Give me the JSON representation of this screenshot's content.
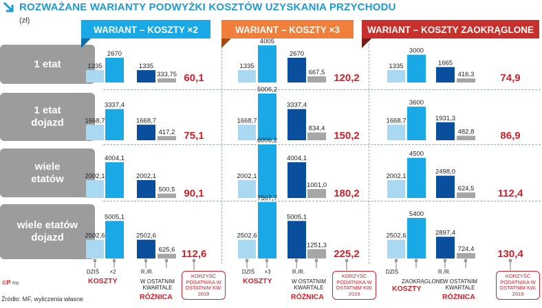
{
  "title": "ROZWAŻANE WARIANTY PODWYŻKI KOSZTÓW UZYSKANIA PRZYCHODU",
  "unit": "(zł)",
  "source": "Źródło: MF, wyliczenia własne",
  "logo": "©P",
  "logo_suffix": "RM",
  "colors": {
    "today": "#a8d8f2",
    "variant": "#18a9e6",
    "difference": "#0a4f9e",
    "quarterly": "#a6a6a6",
    "benefit": "#d0202a",
    "rowlabel_bg": "#9c9c9c"
  },
  "chart_data": {
    "type": "bar",
    "rows": [
      "1 etat",
      "1 etat dojazd",
      "wiele etatów",
      "wiele etatów dojazd"
    ],
    "variants": [
      {
        "banner": "WARIANT – KOSZTY ×2",
        "banner_color": "#18a9e6",
        "koszty": {
          "today_label": "DZIŚ",
          "variant_label": "×2",
          "group_label": "KOSZTY"
        },
        "diff": {
          "yearly_label": "R./R.",
          "quarterly_label": "W OSTATNIM KWARTALE",
          "group_label": "RÓŻNICA"
        },
        "benefit_label": "KORZYŚĆ PODATNIKA W OSTATNIM KW. 2019",
        "today": [
          "1335",
          "1668,7",
          "2002,1",
          "2502,6"
        ],
        "variant": [
          "2670",
          "3337,4",
          "4004,1",
          "5005,1"
        ],
        "yearly_diff": [
          "1335",
          "1668,7",
          "2002,1",
          "2502,6"
        ],
        "quarterly_diff": [
          "333,75",
          "417,2",
          "500,5",
          "625,6"
        ],
        "benefit": [
          "60,1",
          "75,1",
          "90,1",
          "112,6"
        ]
      },
      {
        "banner": "WARIANT – KOSZTY ×3",
        "banner_color": "#f07f3c",
        "koszty": {
          "today_label": "DZIŚ",
          "variant_label": "×3",
          "group_label": "KOSZTY"
        },
        "diff": {
          "yearly_label": "R./R.",
          "quarterly_label": "W OSTATNIM KWARTALE",
          "group_label": "RÓŻNICA"
        },
        "benefit_label": "KORZYŚĆ PODATNIKA W OSTATNIM KW. 2019",
        "today": [
          "1335",
          "1668,7",
          "2002,1",
          "2502,6"
        ],
        "variant": [
          "4005",
          "5006,2",
          "6006,2",
          "7507,7"
        ],
        "yearly_diff": [
          "2670",
          "3337,4",
          "4004,1",
          "5005,1"
        ],
        "quarterly_diff": [
          "667,5",
          "834,4",
          "1001,0",
          "1251,3"
        ],
        "benefit": [
          "120,2",
          "150,2",
          "180,2",
          "225,2"
        ]
      },
      {
        "banner": "WARIANT – KOSZTY ZAOKRĄGLONE",
        "banner_color": "#c8302c",
        "koszty": {
          "today_label": "DZIŚ",
          "variant_label": "ZAOKRĄGLONE",
          "group_label": "KOSZTY"
        },
        "diff": {
          "yearly_label": "R./R.",
          "quarterly_label": "W OSTATNIM KWARTALE",
          "group_label": "RÓŻNICA"
        },
        "benefit_label": "KORZYŚĆ PODATNIKA W OSTATNIM KW. 2019",
        "today": [
          "1335",
          "1668,7",
          "2002,1",
          "2502,6"
        ],
        "variant": [
          "3000",
          "3600",
          "4500",
          "5400"
        ],
        "yearly_diff": [
          "1665",
          "1931,3",
          "2498,0",
          "2897,4"
        ],
        "quarterly_diff": [
          "416,3",
          "482,8",
          "624,5",
          "724,4"
        ],
        "benefit": [
          "74,9",
          "86,9",
          "112,4",
          "130,4"
        ]
      }
    ]
  }
}
